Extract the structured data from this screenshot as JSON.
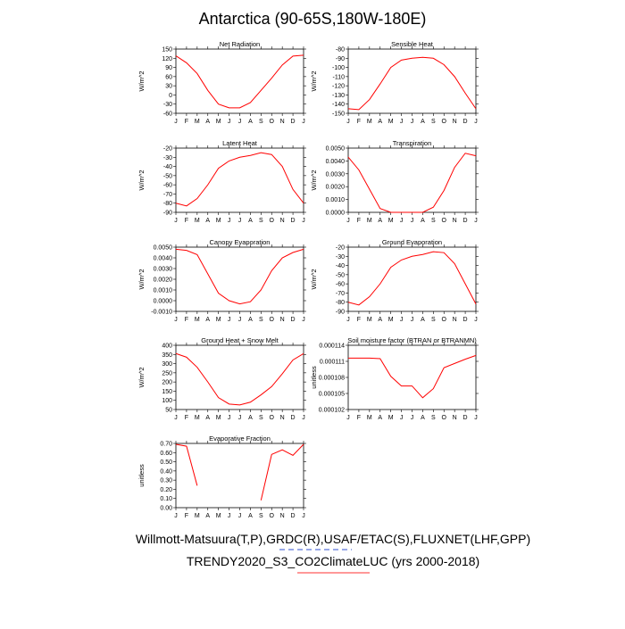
{
  "title": "Antarctica (90-65S,180W-180E)",
  "footnotes": [
    "Willmott-Matsuura(T,P),GRDC(R),USAF/ETAC(S),FLUXNET(LHF,GPP)",
    "TRENDY2020_S3_CO2ClimateLUC (yrs 2000-2018)"
  ],
  "chart_data": [
    {
      "type": "line",
      "title": "Net Radiation",
      "y_label": "W/m^2",
      "color": "#ff0000",
      "categories": [
        "J",
        "F",
        "M",
        "A",
        "M",
        "J",
        "J",
        "A",
        "S",
        "O",
        "N",
        "D",
        "J"
      ],
      "values": [
        128,
        105,
        70,
        15,
        -30,
        -42,
        -42,
        -25,
        15,
        55,
        98,
        127,
        130
      ],
      "ylim": [
        -60,
        150
      ],
      "yticks": [
        -60,
        -30,
        0,
        30,
        60,
        90,
        120,
        150
      ]
    },
    {
      "type": "line",
      "title": "Sensible Heat",
      "y_label": "W/m^2",
      "color": "#ff0000",
      "categories": [
        "J",
        "F",
        "M",
        "A",
        "M",
        "J",
        "J",
        "A",
        "S",
        "O",
        "N",
        "D",
        "J"
      ],
      "values": [
        -145,
        -146,
        -135,
        -118,
        -100,
        -92,
        -90,
        -89,
        -90,
        -97,
        -110,
        -128,
        -145
      ],
      "ylim": [
        -150,
        -80
      ],
      "yticks": [
        -150,
        -140,
        -130,
        -120,
        -110,
        -100,
        -90,
        -80
      ]
    },
    {
      "type": "line",
      "title": "Latent Heat",
      "y_label": "W/m^2",
      "color": "#ff0000",
      "categories": [
        "J",
        "F",
        "M",
        "A",
        "M",
        "J",
        "J",
        "A",
        "S",
        "O",
        "N",
        "D",
        "J"
      ],
      "values": [
        -80,
        -83,
        -75,
        -60,
        -42,
        -34,
        -30,
        -28,
        -25,
        -27,
        -40,
        -65,
        -80
      ],
      "ylim": [
        -90,
        -20
      ],
      "yticks": [
        -90,
        -80,
        -70,
        -60,
        -50,
        -40,
        -30,
        -20
      ]
    },
    {
      "type": "line",
      "title": "Transpiration",
      "y_label": "W/m^2",
      "color": "#ff0000",
      "categories": [
        "J",
        "F",
        "M",
        "A",
        "M",
        "J",
        "J",
        "A",
        "S",
        "O",
        "N",
        "D",
        "J"
      ],
      "values": [
        0.0043,
        0.0033,
        0.0018,
        0.0003,
        0,
        0,
        0,
        0,
        0.0004,
        0.0017,
        0.0035,
        0.0046,
        0.0044
      ],
      "ylim": [
        0,
        0.005
      ],
      "yticks": [
        {
          "value": 0,
          "label": "0.0000"
        },
        {
          "value": 0.001,
          "label": "0.0010"
        },
        {
          "value": 0.002,
          "label": "0.0020"
        },
        {
          "value": 0.003,
          "label": "0.0030"
        },
        {
          "value": 0.004,
          "label": "0.0040"
        },
        {
          "value": 0.005,
          "label": "0.0050"
        }
      ]
    },
    {
      "type": "line",
      "title": "Canopy Evaporation",
      "y_label": "W/m^2",
      "color": "#ff0000",
      "categories": [
        "J",
        "F",
        "M",
        "A",
        "M",
        "J",
        "J",
        "A",
        "S",
        "O",
        "N",
        "D",
        "J"
      ],
      "values": [
        0.0048,
        0.0047,
        0.0043,
        0.0025,
        0.0007,
        0,
        -0.0003,
        -0.0001,
        0.001,
        0.0028,
        0.004,
        0.0045,
        0.0048
      ],
      "ylim": [
        -0.001,
        0.005
      ],
      "yticks": [
        {
          "value": -0.001,
          "label": "-0.0010"
        },
        {
          "value": 0,
          "label": "0.0000"
        },
        {
          "value": 0.001,
          "label": "0.0010"
        },
        {
          "value": 0.002,
          "label": "0.0020"
        },
        {
          "value": 0.003,
          "label": "0.0030"
        },
        {
          "value": 0.004,
          "label": "0.0040"
        },
        {
          "value": 0.005,
          "label": "0.0050"
        }
      ]
    },
    {
      "type": "line",
      "title": "Ground Evaporation",
      "y_label": "W/m^2",
      "color": "#ff0000",
      "categories": [
        "J",
        "F",
        "M",
        "A",
        "M",
        "J",
        "J",
        "A",
        "S",
        "O",
        "N",
        "D",
        "J"
      ],
      "values": [
        -80,
        -83,
        -74,
        -60,
        -42,
        -34,
        -30,
        -28,
        -25,
        -26,
        -38,
        -60,
        -82
      ],
      "ylim": [
        -90,
        -20
      ],
      "yticks": [
        -90,
        -80,
        -70,
        -60,
        -50,
        -40,
        -30,
        -20
      ]
    },
    {
      "type": "line",
      "title": "Ground Heat + Snow Melt",
      "y_label": "W/m^2",
      "color": "#ff0000",
      "categories": [
        "J",
        "F",
        "M",
        "A",
        "M",
        "J",
        "J",
        "A",
        "S",
        "O",
        "N",
        "D",
        "J"
      ],
      "values": [
        355,
        335,
        280,
        200,
        115,
        80,
        75,
        90,
        130,
        175,
        245,
        320,
        355
      ],
      "ylim": [
        50,
        400
      ],
      "yticks": [
        50,
        100,
        150,
        200,
        250,
        300,
        350,
        400
      ]
    },
    {
      "type": "line",
      "title": "Soil moisture factor (BTRAN or BTRANMN)",
      "y_label": "unitless",
      "color": "#ff0000",
      "categories": [
        "J",
        "F",
        "M",
        "A",
        "M",
        "J",
        "J",
        "A",
        "S",
        "O",
        "N",
        "D",
        "J"
      ],
      "values": [
        0.0001116,
        0.0001116,
        0.0001116,
        0.0001115,
        0.0001082,
        0.0001064,
        0.0001064,
        0.0001042,
        0.0001059,
        0.0001098,
        0.0001106,
        0.0001114,
        0.0001121
      ],
      "ylim": [
        0.000102,
        0.000114
      ],
      "yticks": [
        0.000102,
        0.000105,
        0.000108,
        0.000111,
        0.000114
      ]
    },
    {
      "type": "line",
      "title": "Evaporative Fraction",
      "y_label": "unitless",
      "color": "#ff0000",
      "categories": [
        "J",
        "F",
        "M",
        "A",
        "M",
        "J",
        "J",
        "A",
        "S",
        "O",
        "N",
        "D",
        "J"
      ],
      "values": [
        0.69,
        0.67,
        0.24,
        null,
        null,
        null,
        null,
        null,
        0.08,
        0.58,
        0.63,
        0.57,
        0.69
      ],
      "ylim": [
        0,
        0.7
      ],
      "yticks": [
        {
          "value": 0,
          "label": "0.00"
        },
        {
          "value": 0.1,
          "label": "0.10"
        },
        {
          "value": 0.2,
          "label": "0.20"
        },
        {
          "value": 0.3,
          "label": "0.30"
        },
        {
          "value": 0.4,
          "label": "0.40"
        },
        {
          "value": 0.5,
          "label": "0.50"
        },
        {
          "value": 0.6,
          "label": "0.60"
        },
        {
          "value": 0.7,
          "label": "0.70"
        }
      ]
    }
  ]
}
